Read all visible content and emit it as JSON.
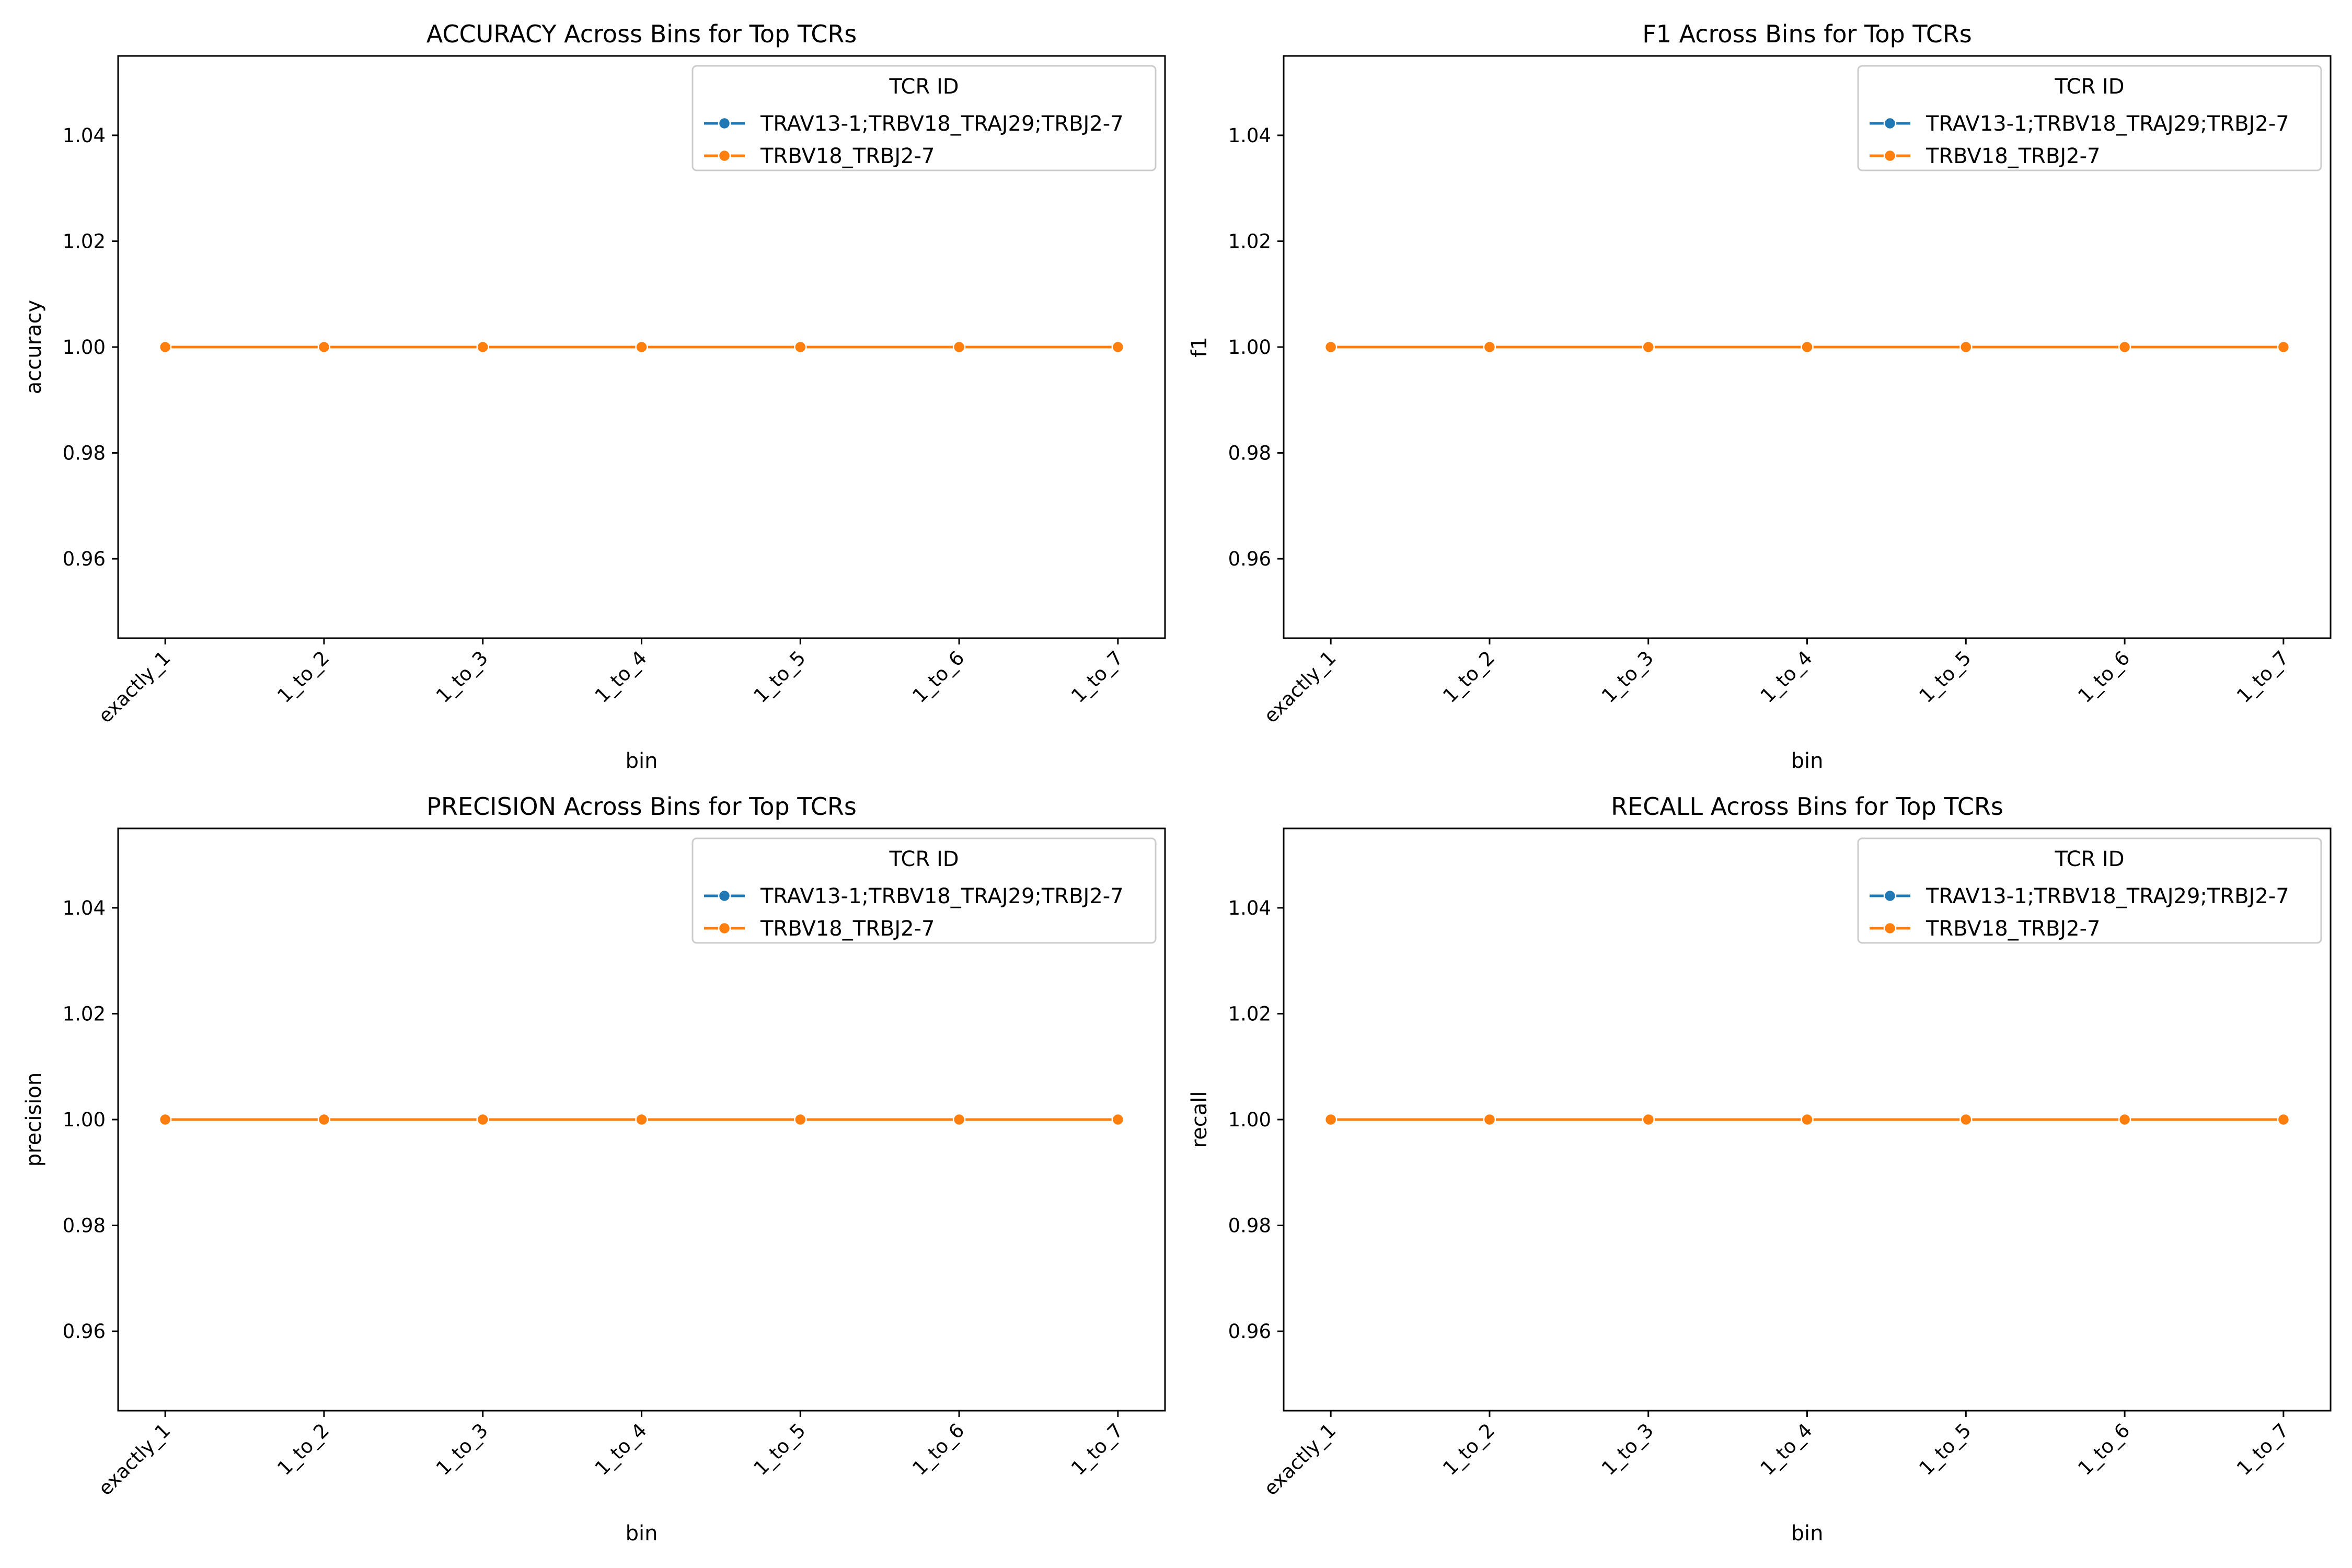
{
  "chart_data": [
    {
      "type": "line",
      "title": "ACCURACY Across Bins for Top TCRs",
      "xlabel": "bin",
      "ylabel": "accuracy",
      "categories": [
        "exactly_1",
        "1_to_2",
        "1_to_3",
        "1_to_4",
        "1_to_5",
        "1_to_6",
        "1_to_7"
      ],
      "ylim": [
        0.945,
        1.055
      ],
      "yticks": [
        "0.96",
        "0.98",
        "1.00",
        "1.02",
        "1.04"
      ],
      "legend_title": "TCR ID",
      "legend_position": "top-right",
      "grid": false,
      "series": [
        {
          "name": "TRAV13-1;TRBV18_TRAJ29;TRBJ2-7",
          "color": "#1f77b4",
          "values": [
            1.0,
            1.0,
            1.0,
            1.0,
            1.0,
            1.0,
            1.0
          ]
        },
        {
          "name": "TRBV18_TRBJ2-7",
          "color": "#ff7f0e",
          "values": [
            1.0,
            1.0,
            1.0,
            1.0,
            1.0,
            1.0,
            1.0
          ]
        }
      ]
    },
    {
      "type": "line",
      "title": "F1 Across Bins for Top TCRs",
      "xlabel": "bin",
      "ylabel": "f1",
      "categories": [
        "exactly_1",
        "1_to_2",
        "1_to_3",
        "1_to_4",
        "1_to_5",
        "1_to_6",
        "1_to_7"
      ],
      "ylim": [
        0.945,
        1.055
      ],
      "yticks": [
        "0.96",
        "0.98",
        "1.00",
        "1.02",
        "1.04"
      ],
      "legend_title": "TCR ID",
      "legend_position": "top-right",
      "grid": false,
      "series": [
        {
          "name": "TRAV13-1;TRBV18_TRAJ29;TRBJ2-7",
          "color": "#1f77b4",
          "values": [
            1.0,
            1.0,
            1.0,
            1.0,
            1.0,
            1.0,
            1.0
          ]
        },
        {
          "name": "TRBV18_TRBJ2-7",
          "color": "#ff7f0e",
          "values": [
            1.0,
            1.0,
            1.0,
            1.0,
            1.0,
            1.0,
            1.0
          ]
        }
      ]
    },
    {
      "type": "line",
      "title": "PRECISION Across Bins for Top TCRs",
      "xlabel": "bin",
      "ylabel": "precision",
      "categories": [
        "exactly_1",
        "1_to_2",
        "1_to_3",
        "1_to_4",
        "1_to_5",
        "1_to_6",
        "1_to_7"
      ],
      "ylim": [
        0.945,
        1.055
      ],
      "yticks": [
        "0.96",
        "0.98",
        "1.00",
        "1.02",
        "1.04"
      ],
      "legend_title": "TCR ID",
      "legend_position": "top-right",
      "grid": false,
      "series": [
        {
          "name": "TRAV13-1;TRBV18_TRAJ29;TRBJ2-7",
          "color": "#1f77b4",
          "values": [
            1.0,
            1.0,
            1.0,
            1.0,
            1.0,
            1.0,
            1.0
          ]
        },
        {
          "name": "TRBV18_TRBJ2-7",
          "color": "#ff7f0e",
          "values": [
            1.0,
            1.0,
            1.0,
            1.0,
            1.0,
            1.0,
            1.0
          ]
        }
      ]
    },
    {
      "type": "line",
      "title": "RECALL Across Bins for Top TCRs",
      "xlabel": "bin",
      "ylabel": "recall",
      "categories": [
        "exactly_1",
        "1_to_2",
        "1_to_3",
        "1_to_4",
        "1_to_5",
        "1_to_6",
        "1_to_7"
      ],
      "ylim": [
        0.945,
        1.055
      ],
      "yticks": [
        "0.96",
        "0.98",
        "1.00",
        "1.02",
        "1.04"
      ],
      "legend_title": "TCR ID",
      "legend_position": "top-right",
      "grid": false,
      "series": [
        {
          "name": "TRAV13-1;TRBV18_TRAJ29;TRBJ2-7",
          "color": "#1f77b4",
          "values": [
            1.0,
            1.0,
            1.0,
            1.0,
            1.0,
            1.0,
            1.0
          ]
        },
        {
          "name": "TRBV18_TRBJ2-7",
          "color": "#ff7f0e",
          "values": [
            1.0,
            1.0,
            1.0,
            1.0,
            1.0,
            1.0,
            1.0
          ]
        }
      ]
    }
  ]
}
